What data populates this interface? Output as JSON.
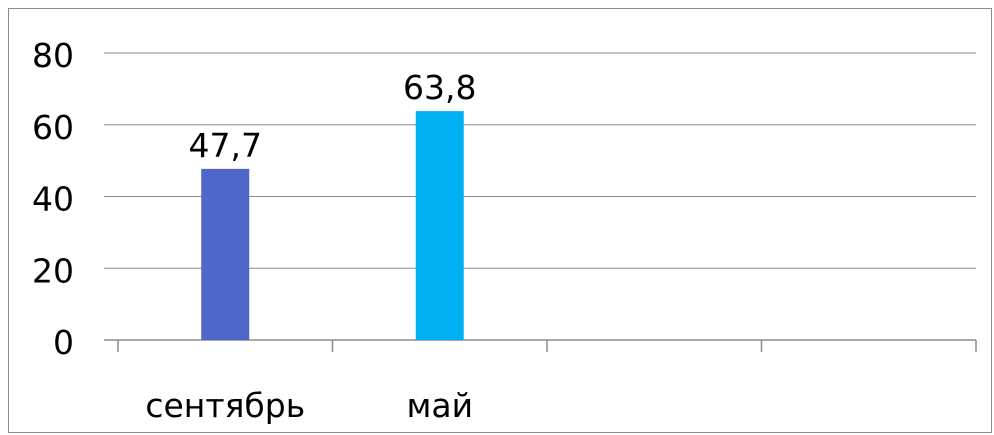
{
  "chart_data": {
    "type": "bar",
    "categories": [
      "сентябрь",
      "май",
      "",
      ""
    ],
    "values": [
      47.7,
      63.8,
      null,
      null
    ],
    "data_labels": [
      "47,7",
      "63,8",
      "",
      ""
    ],
    "bar_colors": [
      "#4F67C9",
      "#00B0F0",
      "",
      ""
    ],
    "title": "",
    "xlabel": "",
    "ylabel": "",
    "ylim": [
      0,
      80
    ],
    "yticks": [
      0,
      20,
      40,
      60,
      80
    ],
    "ytick_labels": [
      "0",
      "20",
      "40",
      "60",
      "80"
    ],
    "grid": true,
    "legend": "none",
    "colors": {
      "gridline": "#8C8C8C",
      "axis": "#8C8C8C",
      "text": "#000000"
    }
  }
}
